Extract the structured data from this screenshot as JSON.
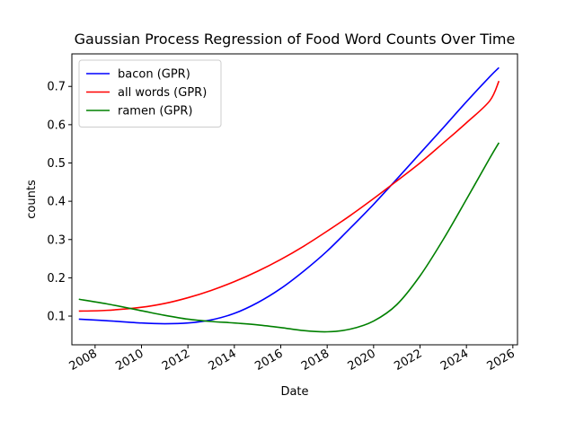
{
  "chart_data": {
    "type": "line",
    "title": "Gaussian Process Regression of Food Word Counts Over Time",
    "xlabel": "Date",
    "ylabel": "counts",
    "xlim": [
      2007.0,
      2026.2
    ],
    "ylim": [
      0.025,
      0.785
    ],
    "x_ticks": [
      2008,
      2010,
      2012,
      2014,
      2016,
      2018,
      2020,
      2022,
      2024,
      2026
    ],
    "y_ticks": [
      0.1,
      0.2,
      0.3,
      0.4,
      0.5,
      0.6,
      0.7
    ],
    "grid": false,
    "legend_position": "top-left",
    "series": [
      {
        "name": "bacon (GPR)",
        "color": "#0000ff",
        "x": [
          2007.3,
          2008.5,
          2010.0,
          2011.0,
          2012.0,
          2013.0,
          2014.0,
          2015.0,
          2016.0,
          2017.0,
          2018.0,
          2019.0,
          2020.0,
          2021.0,
          2022.0,
          2023.0,
          2024.0,
          2025.0,
          2025.4
        ],
        "y": [
          0.092,
          0.088,
          0.082,
          0.08,
          0.082,
          0.09,
          0.107,
          0.135,
          0.172,
          0.218,
          0.27,
          0.33,
          0.392,
          0.458,
          0.525,
          0.592,
          0.66,
          0.725,
          0.749
        ]
      },
      {
        "name": "all words (GPR)",
        "color": "#ff0000",
        "x": [
          2007.3,
          2008.5,
          2010.0,
          2011.0,
          2012.0,
          2013.0,
          2014.0,
          2015.0,
          2016.0,
          2017.0,
          2018.0,
          2019.0,
          2020.0,
          2021.0,
          2022.0,
          2023.0,
          2024.0,
          2025.0,
          2025.4
        ],
        "y": [
          0.113,
          0.115,
          0.123,
          0.133,
          0.148,
          0.167,
          0.19,
          0.217,
          0.248,
          0.283,
          0.322,
          0.363,
          0.407,
          0.453,
          0.5,
          0.552,
          0.605,
          0.662,
          0.714
        ]
      },
      {
        "name": "ramen (GPR)",
        "color": "#008000",
        "x": [
          2007.3,
          2008.5,
          2010.0,
          2011.0,
          2012.0,
          2013.0,
          2014.0,
          2015.0,
          2016.0,
          2017.0,
          2018.0,
          2019.0,
          2020.0,
          2021.0,
          2022.0,
          2023.0,
          2024.0,
          2025.0,
          2025.4
        ],
        "y": [
          0.144,
          0.132,
          0.114,
          0.102,
          0.092,
          0.086,
          0.082,
          0.077,
          0.07,
          0.062,
          0.059,
          0.066,
          0.087,
          0.13,
          0.205,
          0.3,
          0.405,
          0.512,
          0.553
        ]
      }
    ]
  }
}
